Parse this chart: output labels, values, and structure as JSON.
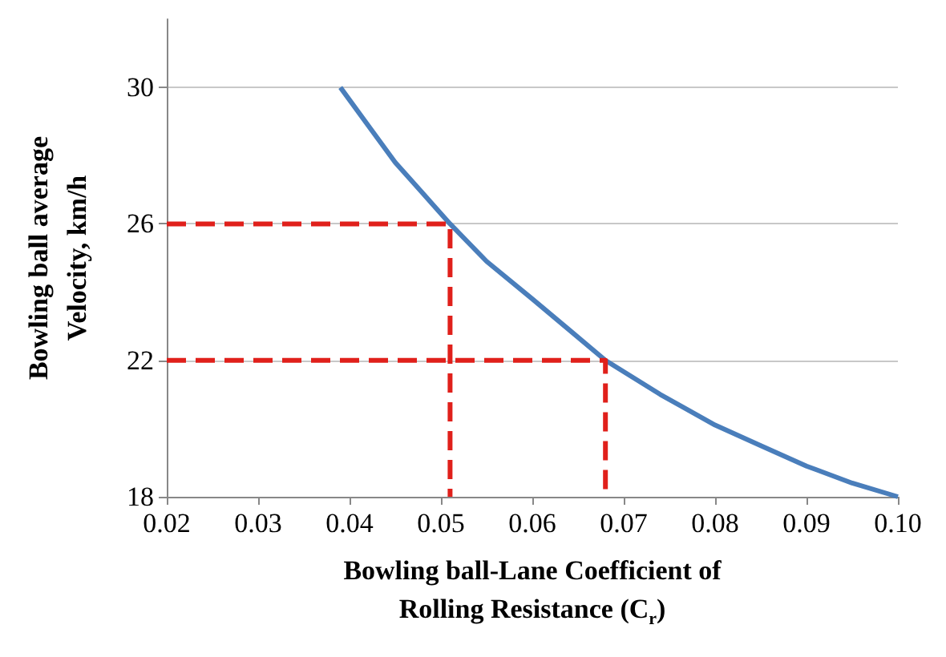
{
  "chart_data": {
    "type": "line",
    "xlabel": "Bowling ball-Lane Coefficient of\nRolling Resistance (C$_{r}$)",
    "ylabel": "Bowling ball average\nVelocity, km/h",
    "xlim": [
      0.02,
      0.1
    ],
    "xticks": [
      0.02,
      0.03,
      0.04,
      0.05,
      0.06,
      0.07,
      0.08,
      0.09,
      {
        "value": 0.1,
        "label": "0.10"
      }
    ],
    "ylim": [
      18,
      32
    ],
    "yticks": [
      18,
      22,
      26,
      30
    ],
    "grid": "y",
    "marker": "none",
    "series": [
      {
        "color": "#4a7ebb",
        "line_style": "solid",
        "x": [
          0.039,
          0.042,
          0.045,
          0.048,
          0.051,
          0.055,
          0.06,
          0.064,
          0.068,
          0.074,
          0.08,
          0.085,
          0.09,
          0.095,
          0.1
        ],
        "values": [
          30,
          28.9,
          27.8,
          26.9,
          26,
          24.9,
          23.8,
          22.9,
          22,
          21,
          20.1,
          19.5,
          18.9,
          18.4,
          18
        ]
      },
      {
        "color": "#e0201b",
        "line_style": "dashed",
        "x": [
          0.02,
          0.051,
          0.051
        ],
        "values": [
          26,
          26,
          18
        ]
      },
      {
        "color": "#e0201b",
        "line_style": "dashed",
        "x": [
          0.02,
          0.068,
          0.068
        ],
        "values": [
          22,
          22,
          18
        ]
      }
    ]
  }
}
